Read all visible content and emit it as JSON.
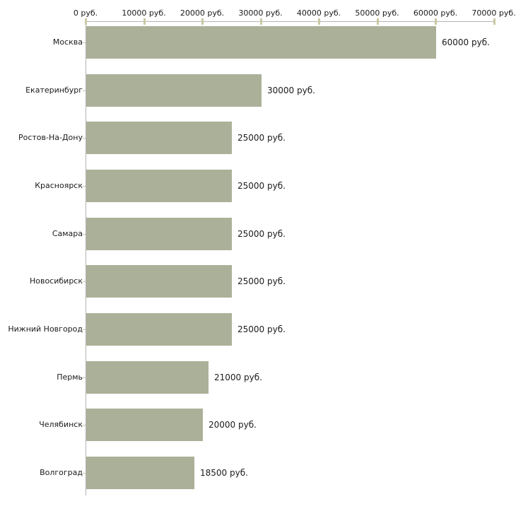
{
  "chart_data": {
    "type": "bar",
    "orientation": "horizontal",
    "title": "",
    "xlabel": "",
    "ylabel": "",
    "unit": "руб.",
    "grid": false,
    "legend": false,
    "xlim": [
      0,
      70000
    ],
    "categories": [
      "Москва",
      "Екатеринбург",
      "Ростов-На-Дону",
      "Красноярск",
      "Самара",
      "Новосибирск",
      "Нижний Новгород",
      "Пермь",
      "Челябинск",
      "Волгоград"
    ],
    "values": [
      60000,
      30000,
      25000,
      25000,
      25000,
      25000,
      25000,
      21000,
      20000,
      18500
    ],
    "value_labels": [
      "60000 руб.",
      "30000 руб.",
      "25000 руб.",
      "25000 руб.",
      "25000 руб.",
      "25000 руб.",
      "25000 руб.",
      "21000 руб.",
      "20000 руб.",
      "18500 руб."
    ],
    "x_tick_values": [
      0,
      10000,
      20000,
      30000,
      40000,
      50000,
      60000,
      70000
    ],
    "x_tick_labels": [
      "0 руб.",
      "10000 руб.",
      "20000 руб.",
      "30000 руб.",
      "40000 руб.",
      "50000 руб.",
      "60000 руб.",
      "70000 руб."
    ],
    "colors": {
      "bar": "#abb199",
      "axis_line": "#b3b3b3",
      "tick_mark": "#c9c9a3",
      "category_tick": "#c3c3ab",
      "text": "#1a1a1a",
      "background": "#ffffff"
    }
  }
}
